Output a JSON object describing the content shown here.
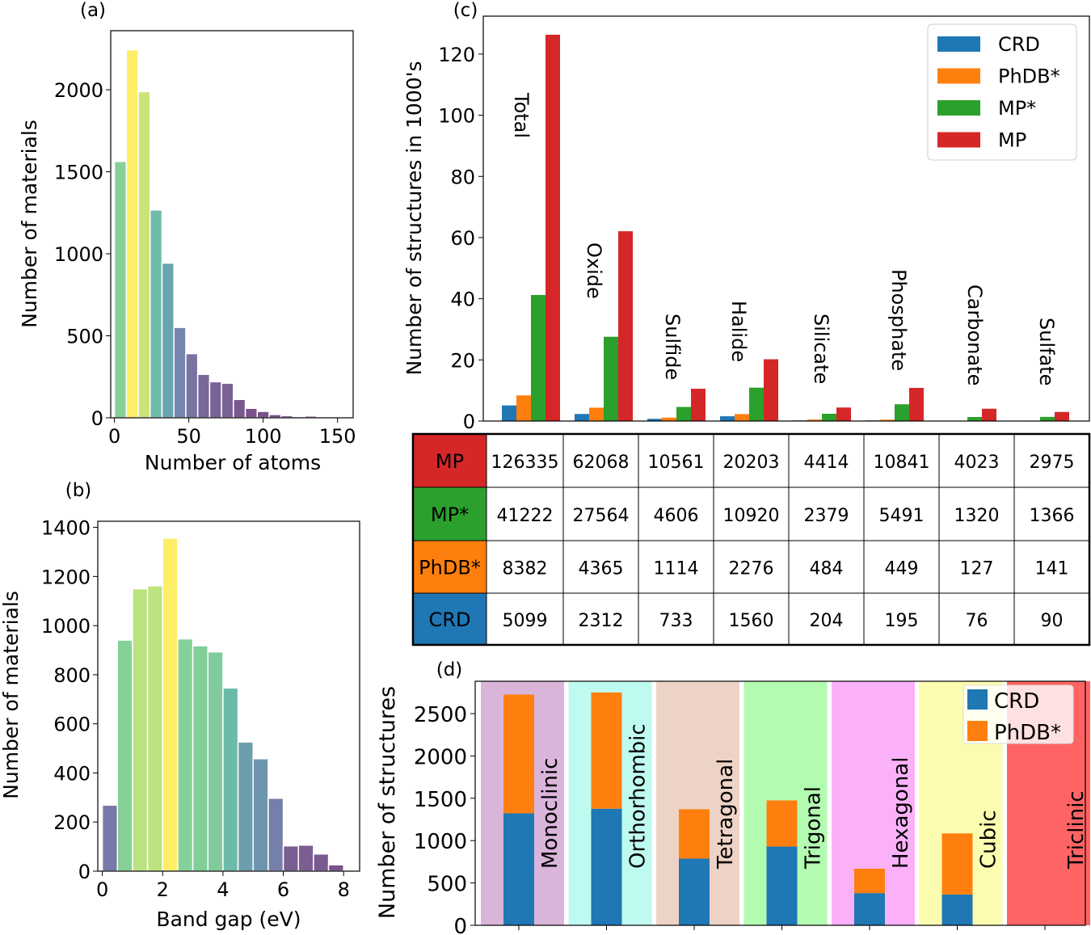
{
  "chart_data": [
    {
      "panel": "(a)",
      "type": "bar",
      "subtype": "histogram",
      "xlabel": "Number of atoms",
      "ylabel": "Number of materials",
      "bin_start": 0,
      "bin_width": 8,
      "values": [
        1563,
        2244,
        1989,
        1267,
        943,
        551,
        391,
        265,
        220,
        211,
        112,
        58,
        39,
        20,
        13,
        8,
        11,
        7
      ],
      "xticks": [
        0,
        50,
        100,
        150
      ],
      "yticks": [
        0,
        500,
        1000,
        1500,
        2000
      ],
      "xlim": [
        -2.5,
        160.5
      ],
      "ylim": [
        0,
        2360
      ],
      "colormap": "viridis"
    },
    {
      "panel": "(b)",
      "type": "bar",
      "subtype": "histogram",
      "xlabel": "Band gap (eV)",
      "ylabel": "Number of materials",
      "bin_start": 0,
      "bin_width": 0.5,
      "values": [
        269,
        941,
        1150,
        1162,
        1356,
        946,
        918,
        893,
        746,
        526,
        458,
        297,
        103,
        106,
        70,
        26,
        4
      ],
      "xticks": [
        0,
        2,
        4,
        6,
        8
      ],
      "yticks": [
        0,
        200,
        400,
        600,
        800,
        1000,
        1200,
        1400
      ],
      "xlim": [
        -0.15,
        8.53
      ],
      "ylim": [
        0,
        1425
      ],
      "colormap": "viridis"
    },
    {
      "panel": "(c)",
      "type": "bar",
      "ylabel": "Number of structures in 1000's",
      "categories": [
        "Total",
        "Oxide",
        "Sulfide",
        "Halide",
        "Silicate",
        "Phosphate",
        "Carbonate",
        "Sulfate"
      ],
      "series": [
        {
          "name": "CRD",
          "color": "#1f77b4",
          "values": [
            5.099,
            2.312,
            0.733,
            1.56,
            0.204,
            0.195,
            0.076,
            0.09
          ]
        },
        {
          "name": "PhDB*",
          "color": "#ff7f0e",
          "values": [
            8.382,
            4.365,
            1.114,
            2.276,
            0.484,
            0.449,
            0.127,
            0.141
          ]
        },
        {
          "name": "MP*",
          "color": "#2ca02c",
          "values": [
            41.222,
            27.564,
            4.606,
            10.92,
            2.379,
            5.491,
            1.32,
            1.366
          ]
        },
        {
          "name": "MP",
          "color": "#d62728",
          "values": [
            126.335,
            62.068,
            10.561,
            20.203,
            4.414,
            10.841,
            4.023,
            2.975
          ]
        }
      ],
      "yticks": [
        0,
        20,
        40,
        60,
        80,
        100,
        120
      ],
      "ylim": [
        0,
        132.4
      ],
      "legend": "top-right"
    },
    {
      "panel": "(c) table",
      "type": "table",
      "rows": [
        {
          "label": "MP",
          "color": "#d62728",
          "values": [
            "126335",
            "62068",
            "10561",
            "20203",
            "4414",
            "10841",
            "4023",
            "2975"
          ]
        },
        {
          "label": "MP*",
          "color": "#2ca02c",
          "values": [
            "41222",
            "27564",
            "4606",
            "10920",
            "2379",
            "5491",
            "1320",
            "1366"
          ]
        },
        {
          "label": "PhDB*",
          "color": "#ff7f0e",
          "values": [
            "8382",
            "4365",
            "1114",
            "2276",
            "484",
            "449",
            "127",
            "141"
          ]
        },
        {
          "label": "CRD",
          "color": "#1f77b4",
          "values": [
            "5099",
            "2312",
            "733",
            "1560",
            "204",
            "195",
            "76",
            "90"
          ]
        }
      ]
    },
    {
      "panel": "(d)",
      "type": "bar",
      "subtype": "stacked",
      "ylabel": "Number of structures",
      "categories": [
        "Monoclinic",
        "Orthorhombic",
        "Tetragonal",
        "Trigonal",
        "Hexagonal",
        "Cubic",
        "Triclinic"
      ],
      "category_colors": [
        "#dab5da",
        "#bffaf0",
        "#edd3c5",
        "#b4fbb2",
        "#fbb1fa",
        "#fcfcb0",
        "#fe6464"
      ],
      "series": [
        {
          "name": "CRD",
          "color": "#1f77b4",
          "values": [
            1323,
            1377,
            788,
            930,
            380,
            364,
            0
          ]
        },
        {
          "name": "PhDB*",
          "color": "#ff7f0e",
          "values": [
            1402,
            1373,
            582,
            545,
            288,
            721,
            0
          ]
        }
      ],
      "yticks": [
        0,
        500,
        1000,
        1500,
        2000,
        2500
      ],
      "ylim": [
        0,
        2882
      ],
      "legend": "top-right"
    }
  ]
}
